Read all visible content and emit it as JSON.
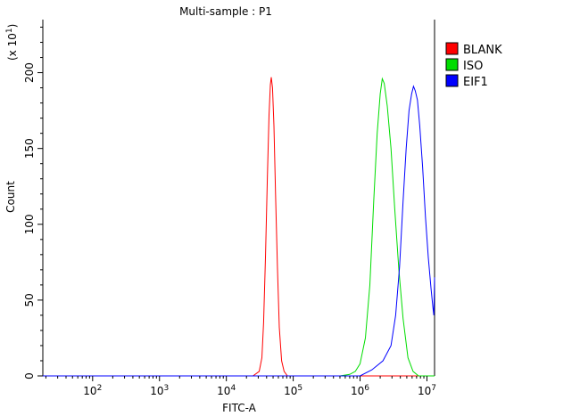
{
  "chart_data": {
    "type": "line",
    "title": "Multi-sample : P1",
    "xlabel": "FITC-A",
    "ylabel": "Count",
    "y_multiplier_label": "(x 10",
    "y_multiplier_exp": "1",
    "x_scale": "log",
    "xlim": [
      18,
      13000000
    ],
    "ylim": [
      0,
      235
    ],
    "x_ticks": [
      {
        "value": 100,
        "base": "10",
        "exp": "2"
      },
      {
        "value": 1000,
        "base": "10",
        "exp": "3"
      },
      {
        "value": 10000,
        "base": "10",
        "exp": "4"
      },
      {
        "value": 100000,
        "base": "10",
        "exp": "5"
      },
      {
        "value": 1000000,
        "base": "10",
        "exp": "6"
      },
      {
        "value": 10000000,
        "base": "10",
        "exp": "7"
      }
    ],
    "y_ticks": [
      {
        "value": 0,
        "label": "0"
      },
      {
        "value": 50,
        "label": "50"
      },
      {
        "value": 100,
        "label": "100"
      },
      {
        "value": 150,
        "label": "150"
      },
      {
        "value": 200,
        "label": "200"
      }
    ],
    "legend_position": "top-right",
    "grid": false,
    "series": [
      {
        "name": "BLANK",
        "color": "#ff0000",
        "points": [
          [
            18,
            0
          ],
          [
            25000,
            0
          ],
          [
            31000,
            3
          ],
          [
            34000,
            12
          ],
          [
            36000,
            35
          ],
          [
            38500,
            78
          ],
          [
            41000,
            130
          ],
          [
            43500,
            172
          ],
          [
            45500,
            192
          ],
          [
            47000,
            197
          ],
          [
            49000,
            190
          ],
          [
            51500,
            165
          ],
          [
            54500,
            120
          ],
          [
            58000,
            72
          ],
          [
            62000,
            32
          ],
          [
            67000,
            10
          ],
          [
            73000,
            3
          ],
          [
            82000,
            0
          ],
          [
            13000000,
            0
          ]
        ]
      },
      {
        "name": "ISO",
        "color": "#00dd00",
        "points": [
          [
            18,
            0
          ],
          [
            500000,
            0
          ],
          [
            700000,
            1
          ],
          [
            850000,
            3
          ],
          [
            1000000,
            8
          ],
          [
            1200000,
            25
          ],
          [
            1400000,
            60
          ],
          [
            1600000,
            115
          ],
          [
            1800000,
            160
          ],
          [
            2000000,
            186
          ],
          [
            2150000,
            196
          ],
          [
            2300000,
            193
          ],
          [
            2550000,
            178
          ],
          [
            2900000,
            150
          ],
          [
            3300000,
            110
          ],
          [
            3800000,
            70
          ],
          [
            4400000,
            38
          ],
          [
            5200000,
            12
          ],
          [
            6200000,
            3
          ],
          [
            7500000,
            0
          ],
          [
            13000000,
            0
          ]
        ]
      },
      {
        "name": "EIF1",
        "color": "#0000ff",
        "points": [
          [
            18,
            0
          ],
          [
            1000000,
            0
          ],
          [
            1500000,
            4
          ],
          [
            2200000,
            10
          ],
          [
            2900000,
            20
          ],
          [
            3400000,
            40
          ],
          [
            3900000,
            72
          ],
          [
            4400000,
            115
          ],
          [
            4900000,
            150
          ],
          [
            5400000,
            175
          ],
          [
            5900000,
            186
          ],
          [
            6300000,
            191
          ],
          [
            6700000,
            188
          ],
          [
            7200000,
            182
          ],
          [
            7800000,
            165
          ],
          [
            8600000,
            138
          ],
          [
            9500000,
            105
          ],
          [
            10500000,
            78
          ],
          [
            11500000,
            58
          ],
          [
            12300000,
            45
          ],
          [
            12700000,
            40
          ],
          [
            13000000,
            65
          ]
        ]
      }
    ]
  }
}
